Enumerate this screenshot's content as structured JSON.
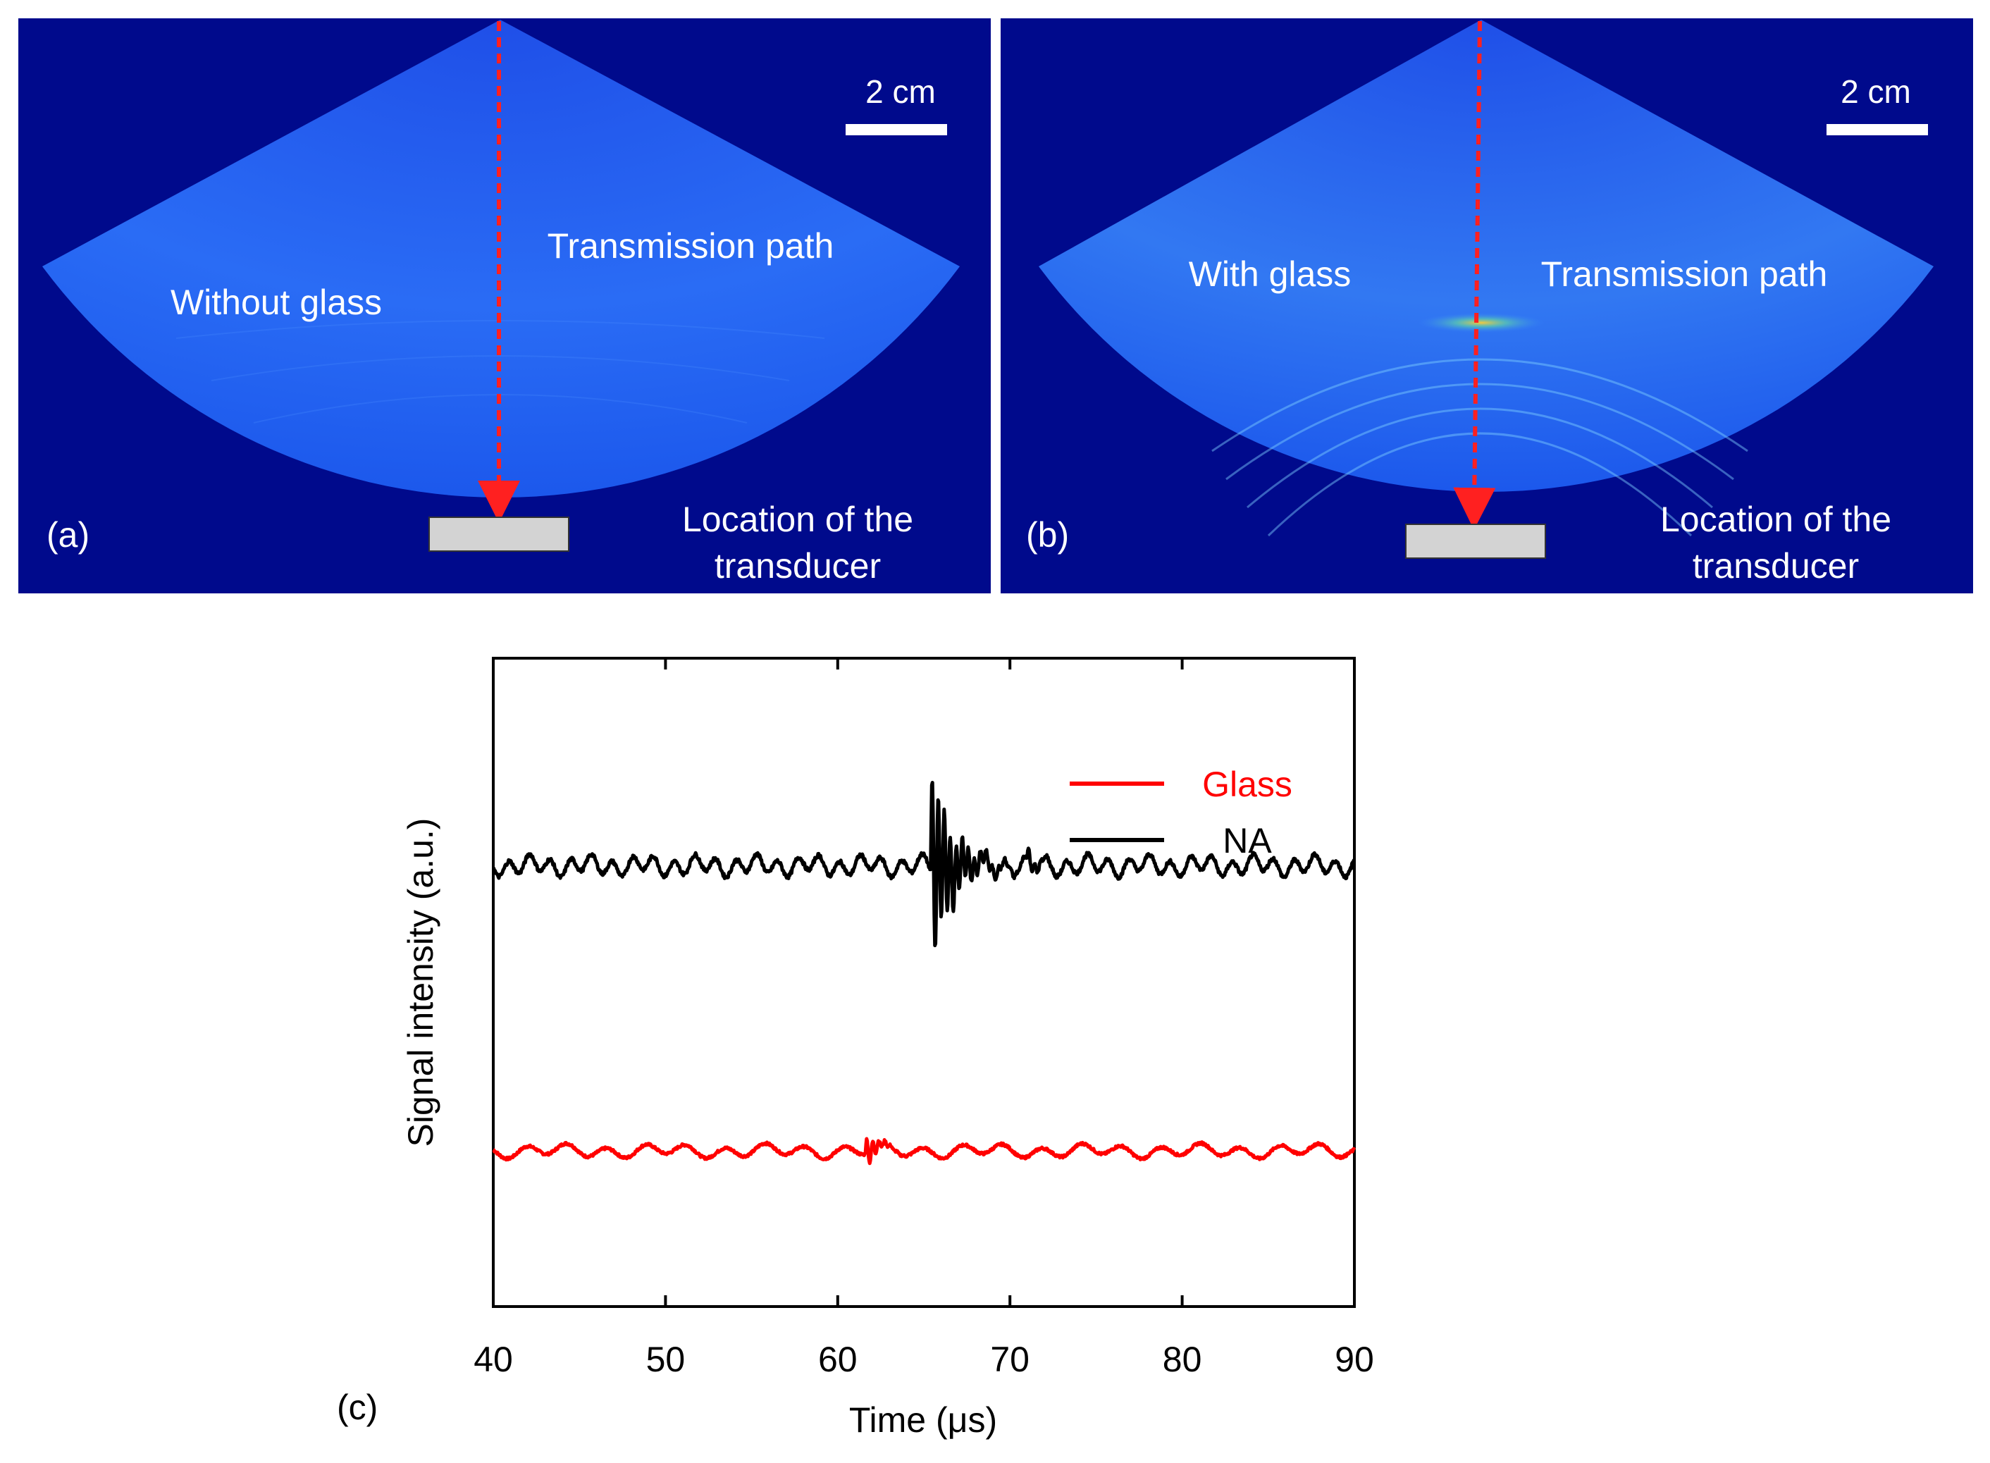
{
  "panel_a": {
    "label": "(a)",
    "scale_bar": "2 cm",
    "condition": "Without glass",
    "path_label": "Transmission path",
    "transducer_label_line1": "Location of the",
    "transducer_label_line2": "transducer"
  },
  "panel_b": {
    "label": "(b)",
    "scale_bar": "2 cm",
    "condition": "With glass",
    "path_label": "Transmission path",
    "transducer_label_line1": "Location of the",
    "transducer_label_line2": "transducer"
  },
  "colors": {
    "background": "#000a8c",
    "fan": "#1d5cf0",
    "arrow": "#ff2020",
    "transducer": "#d3d3d3",
    "glass_series": "#ff0000",
    "na_series": "#000000"
  },
  "chart_data": {
    "type": "line",
    "panel_label": "(c)",
    "xlabel": "Time (μs)",
    "ylabel": "Signal intensity (a.u.)",
    "xlim": [
      40,
      90
    ],
    "ylim": [
      0,
      10
    ],
    "xticks": [
      40,
      50,
      60,
      70,
      80,
      90
    ],
    "grid": false,
    "legend_position": "top-right",
    "series": [
      {
        "name": "Glass",
        "color": "#ff0000",
        "baseline": 2.4,
        "ripple_amplitude": 0.08,
        "ripple_period_us": 2.3,
        "events": [
          {
            "t": 61.6,
            "amplitude": 0.25,
            "decay_us": 0.6
          }
        ]
      },
      {
        "name": "NA",
        "color": "#000000",
        "baseline": 6.8,
        "ripple_amplitude": 0.12,
        "ripple_period_us": 1.2,
        "events": [
          {
            "t": 65.4,
            "amplitude": 1.5,
            "decay_us": 1.2
          },
          {
            "t": 71.0,
            "amplitude": 0.15,
            "decay_us": 0.5
          }
        ]
      }
    ]
  }
}
